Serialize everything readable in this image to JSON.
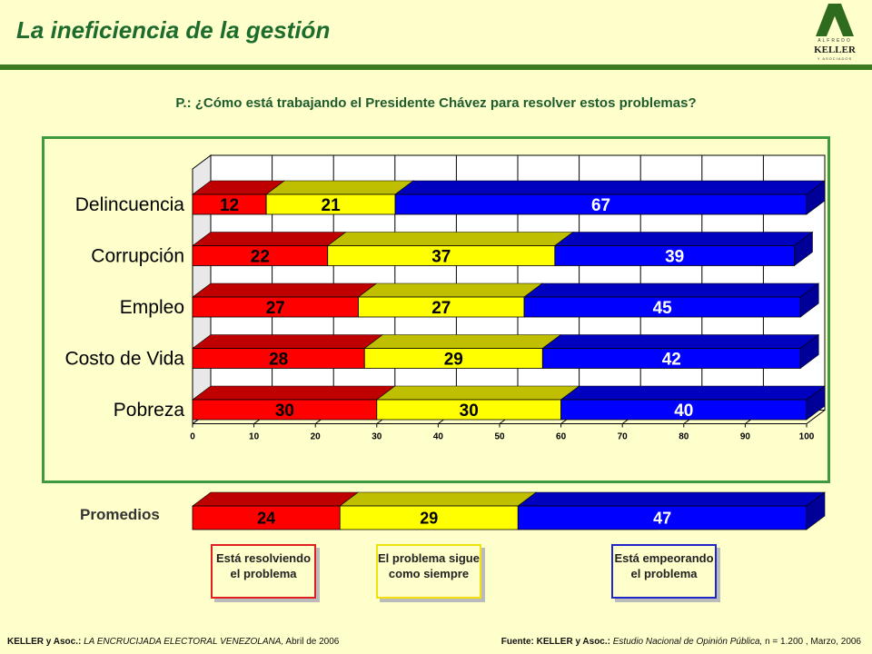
{
  "header": {
    "title": "La ineficiencia de la gestión",
    "logo_top": "ALFREDO",
    "logo_name": "KELLER",
    "logo_bottom": "Y ASOCIADOS"
  },
  "question": "P.: ¿Cómo está trabajando el Presidente Chávez para resolver estos problemas?",
  "colors": {
    "red": "#FF0000",
    "yellow": "#FFFF00",
    "blue": "#0000FF",
    "frame": "#3E9A3E",
    "title": "#1E6B2E"
  },
  "chart_data": {
    "type": "bar",
    "orientation": "horizontal",
    "stacked": true,
    "style": "3d",
    "categories": [
      "Delincuencia",
      "Corrupción",
      "Empleo",
      "Costo de Vida",
      "Pobreza"
    ],
    "series": [
      {
        "name": "Está resolviendo el problema",
        "color": "#FF0000",
        "values": [
          12,
          22,
          27,
          28,
          30
        ]
      },
      {
        "name": "El problema sigue como siempre",
        "color": "#FFFF00",
        "values": [
          21,
          37,
          27,
          29,
          30
        ]
      },
      {
        "name": "Está empeorando el problema",
        "color": "#0000FF",
        "values": [
          67,
          39,
          45,
          42,
          40
        ]
      }
    ],
    "xlim": [
      0,
      100
    ],
    "xticks": [
      "0",
      "10",
      "20",
      "30",
      "40",
      "50",
      "60",
      "70",
      "80",
      "90",
      "100"
    ],
    "grid": true,
    "data_labels": true
  },
  "averages": {
    "label": "Promedios",
    "values": [
      24,
      29,
      47
    ]
  },
  "legend": {
    "items": [
      "Está resolviendo el problema",
      "El problema sigue como siempre",
      "Está empeorando el problema"
    ]
  },
  "footer": {
    "left_bold": "KELLER y Asoc.:",
    "left_italic": "LA ENCRUCIJADA ELECTORAL VENEZOLANA,",
    "left_tail": "Abril de 2006",
    "right_bold": "Fuente: KELLER y Asoc.:",
    "right_italic": "Estudio Nacional de Opinión Pública,",
    "right_tail": "n = 1.200 , Marzo, 2006"
  }
}
